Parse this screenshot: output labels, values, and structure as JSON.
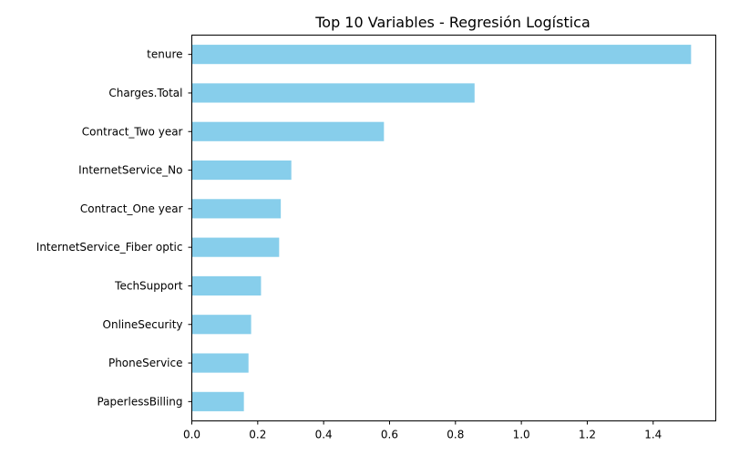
{
  "chart_data": {
    "type": "bar",
    "orientation": "horizontal",
    "title": "Top 10 Variables - Regresión Logística",
    "xlabel": "",
    "ylabel": "",
    "categories": [
      "tenure",
      "Charges.Total",
      "Contract_Two year",
      "InternetService_No",
      "Contract_One year",
      "InternetService_Fiber optic",
      "TechSupport",
      "OnlineSecurity",
      "PhoneService",
      "PaperlessBilling"
    ],
    "values": [
      1.515,
      0.858,
      0.583,
      0.302,
      0.27,
      0.265,
      0.21,
      0.18,
      0.172,
      0.158
    ],
    "xlim": [
      0,
      1.59
    ],
    "xticks": [
      "0.0",
      "0.2",
      "0.4",
      "0.6",
      "0.8",
      "1.0",
      "1.2",
      "1.4"
    ],
    "bar_color": "#87ceeb",
    "grid": false,
    "legend": "none"
  }
}
